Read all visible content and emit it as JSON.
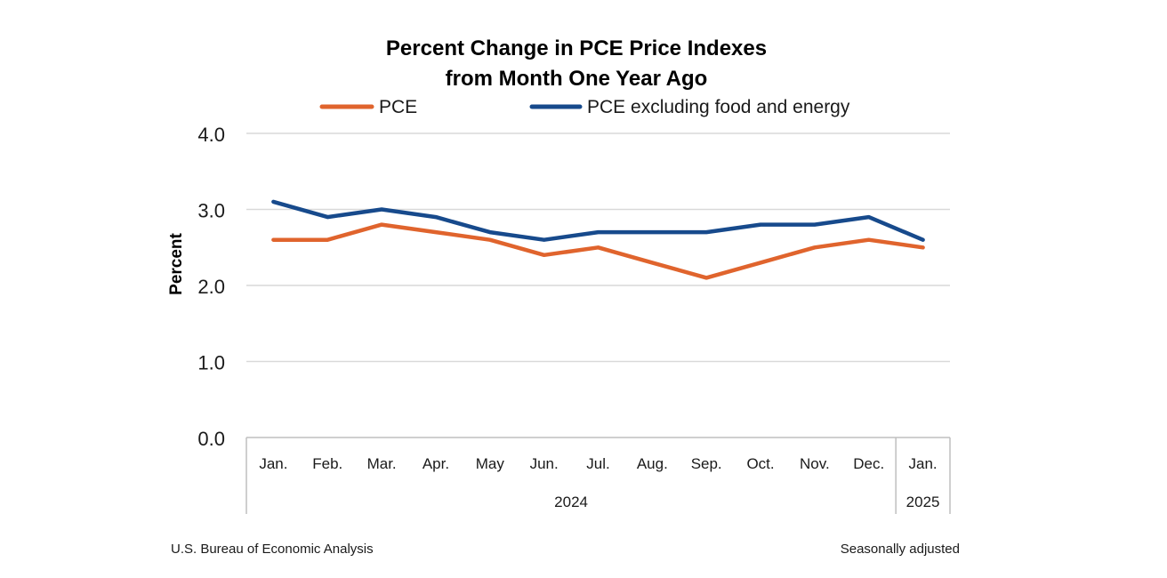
{
  "chart_data": {
    "type": "line",
    "title_lines": [
      "Percent Change in PCE Price Indexes",
      "from Month One Year Ago"
    ],
    "ylabel": "Percent",
    "ylim": [
      0,
      4
    ],
    "yticks": [
      "0.0",
      "1.0",
      "2.0",
      "3.0",
      "4.0"
    ],
    "grid": true,
    "legend_position": "top",
    "categories": [
      "Jan.",
      "Feb.",
      "Mar.",
      "Apr.",
      "May",
      "Jun.",
      "Jul.",
      "Aug.",
      "Sep.",
      "Oct.",
      "Nov.",
      "Dec.",
      "Jan."
    ],
    "year_groups": [
      {
        "label": "2024",
        "count": 12
      },
      {
        "label": "2025",
        "count": 1
      }
    ],
    "series": [
      {
        "name": "PCE",
        "color": "#e0642d",
        "values": [
          2.6,
          2.6,
          2.8,
          2.7,
          2.6,
          2.4,
          2.5,
          2.3,
          2.1,
          2.3,
          2.5,
          2.6,
          2.5
        ]
      },
      {
        "name": "PCE excluding food and energy",
        "color": "#174a8c",
        "values": [
          3.1,
          2.9,
          3.0,
          2.9,
          2.7,
          2.6,
          2.7,
          2.7,
          2.7,
          2.8,
          2.8,
          2.9,
          2.6
        ]
      }
    ]
  },
  "footer": {
    "source": "U.S. Bureau of Economic Analysis",
    "note": "Seasonally adjusted"
  }
}
